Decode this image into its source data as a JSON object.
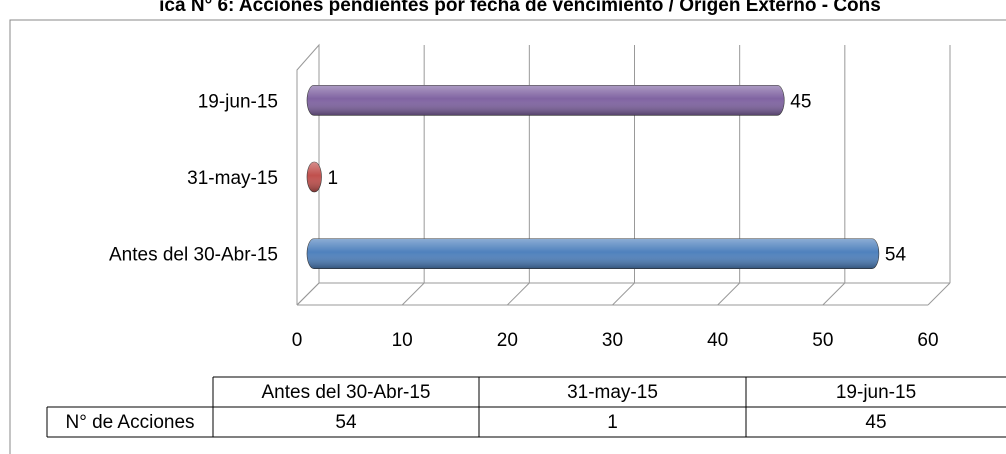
{
  "chart_data": {
    "type": "bar",
    "orientation": "horizontal",
    "title": "ica N° 6: Acciones pendientes por fecha de vencimiento / Origen Externo - Cons",
    "categories": [
      "Antes del 30-Abr-15",
      "31-may-15",
      "19-jun-15"
    ],
    "values": [
      54,
      1,
      45
    ],
    "colors": [
      "#4f81bd",
      "#c0504d",
      "#8064a2"
    ],
    "xlim": [
      0,
      60
    ],
    "xticks": [
      0,
      10,
      20,
      30,
      40,
      50,
      60
    ],
    "grid": true,
    "data_table": {
      "row_label": "N° de Acciones"
    }
  }
}
